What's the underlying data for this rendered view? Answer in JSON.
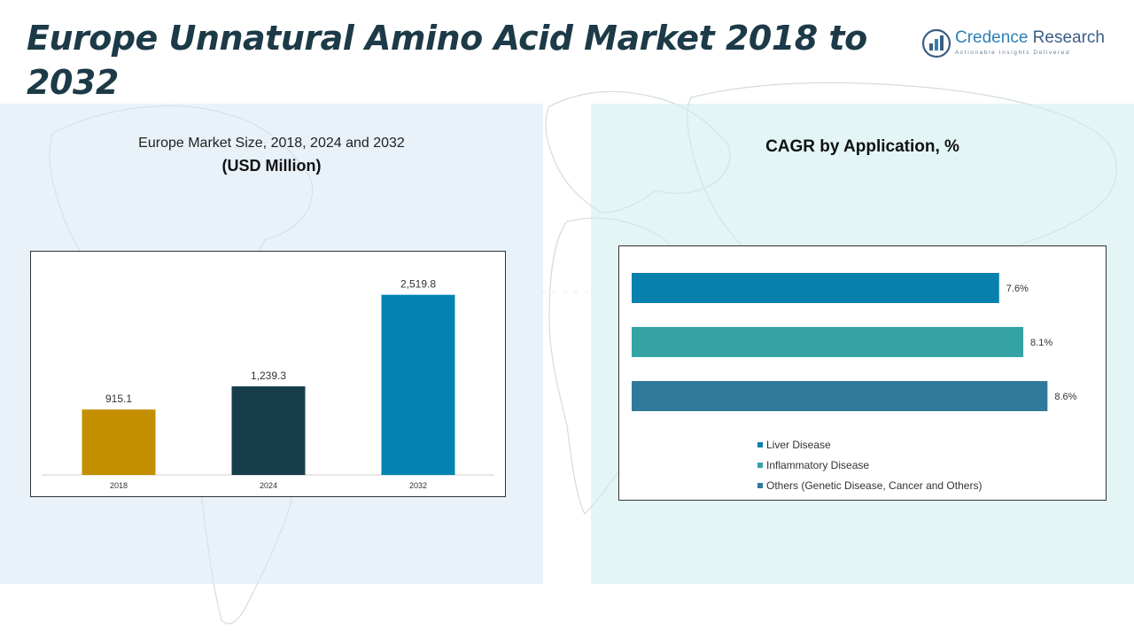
{
  "page": {
    "title": "Europe Unnatural Amino Acid Market 2018 to 2032"
  },
  "logo": {
    "name_strong": "Credence",
    "name_rest": " Research",
    "tagline": "Actionable Insights Delivered",
    "icon": "bar-chart-logo-icon"
  },
  "left_panel": {
    "subtitle": "Europe Market Size, 2018, 2024 and 2032",
    "unit": "(USD Million)"
  },
  "right_panel": {
    "title": "CAGR by Application, %"
  },
  "chart_data": [
    {
      "type": "bar",
      "title": "Europe Market Size, 2018, 2024 and 2032",
      "ylabel": "(USD Million)",
      "categories": [
        "2018",
        "2024",
        "2032"
      ],
      "values": [
        915.1,
        1239.3,
        2519.8
      ],
      "value_labels": [
        "915.1",
        "1,239.3",
        "2,519.8"
      ],
      "colors": [
        "#c38f00",
        "#173d4c",
        "#0383b2"
      ],
      "ylim": [
        0,
        2900
      ],
      "grid": false
    },
    {
      "type": "bar",
      "orientation": "horizontal",
      "title": "CAGR by Application, %",
      "categories": [
        "Liver Disease",
        "Inflammatory Disease",
        "Others (Genetic Disease, Cancer and Others)"
      ],
      "values": [
        7.6,
        8.1,
        8.6
      ],
      "value_labels": [
        "7.6%",
        "8.1%",
        "8.6%"
      ],
      "colors": [
        "#0780ae",
        "#35a3a3",
        "#2f7a9a"
      ],
      "xlim": [
        0,
        9.4
      ],
      "grid": false,
      "legend": "bottom"
    }
  ]
}
